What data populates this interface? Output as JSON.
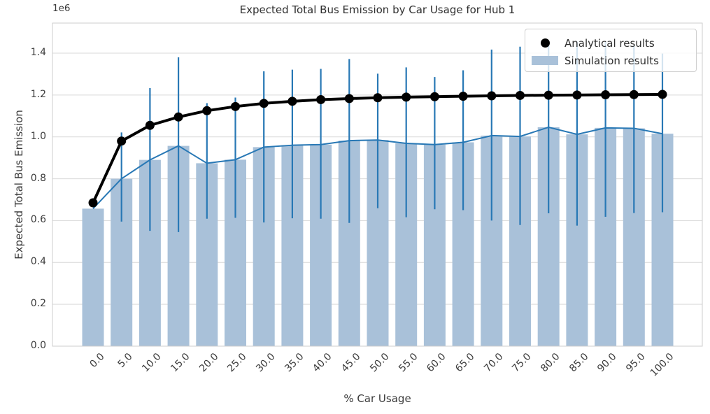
{
  "figure": {
    "title": "Expected Total Bus Emission by Car Usage for Hub 1",
    "y_offset_label": "1e6",
    "xlabel": "% Car Usage",
    "ylabel": "Expected Total Bus Emission"
  },
  "legend": {
    "items": [
      {
        "label": "Analytical results",
        "marker": "black-dot"
      },
      {
        "label": "Simulation results",
        "marker": "blue-bar-patch"
      }
    ]
  },
  "colors": {
    "bar": "#a9c1d9",
    "blue_line": "#2878b5",
    "analytical_line": "#000000",
    "grid": "#d9d9d9",
    "spine": "#cccccc"
  },
  "chart_data": {
    "type": "bar",
    "title": "Expected Total Bus Emission by Car Usage for Hub 1",
    "xlabel": "% Car Usage",
    "ylabel": "Expected Total Bus Emission",
    "unit_multiplier": "1e6",
    "categories": [
      "0.0",
      "5.0",
      "10.0",
      "15.0",
      "20.0",
      "25.0",
      "30.0",
      "35.0",
      "40.0",
      "45.0",
      "50.0",
      "55.0",
      "60.0",
      "65.0",
      "70.0",
      "75.0",
      "80.0",
      "85.0",
      "90.0",
      "95.0",
      "100.0"
    ],
    "ytick_labels": [
      "0.0",
      "0.2",
      "0.4",
      "0.6",
      "0.8",
      "1.0",
      "1.2",
      "1.4"
    ],
    "yticks": [
      0.0,
      0.2,
      0.4,
      0.6,
      0.8,
      1.0,
      1.2,
      1.4
    ],
    "ylim": [
      0,
      1.545
    ],
    "grid": "horizontal",
    "legend_position": "upper right",
    "series": [
      {
        "name": "Analytical results",
        "type": "line",
        "values": [
          0.685,
          0.98,
          1.055,
          1.095,
          1.125,
          1.145,
          1.16,
          1.17,
          1.178,
          1.183,
          1.187,
          1.19,
          1.192,
          1.194,
          1.196,
          1.198,
          1.199,
          1.2,
          1.201,
          1.202,
          1.203
        ]
      },
      {
        "name": "Simulation results",
        "type": "bar",
        "values": [
          0.657,
          0.8,
          0.89,
          0.957,
          0.874,
          0.891,
          0.951,
          0.96,
          0.963,
          0.982,
          0.985,
          0.969,
          0.963,
          0.974,
          1.006,
          1.002,
          1.046,
          1.012,
          1.043,
          1.041,
          1.015
        ],
        "err_low": [
          null,
          0.595,
          0.551,
          0.545,
          0.609,
          0.613,
          0.591,
          0.611,
          0.609,
          0.589,
          0.659,
          0.616,
          0.654,
          0.65,
          0.6,
          0.579,
          0.635,
          0.576,
          0.618,
          0.636,
          0.64
        ],
        "err_high": [
          null,
          1.021,
          1.233,
          1.38,
          1.161,
          1.188,
          1.313,
          1.321,
          1.325,
          1.372,
          1.302,
          1.332,
          1.286,
          1.318,
          1.417,
          1.431,
          1.448,
          1.455,
          1.455,
          1.437,
          1.398
        ]
      }
    ]
  }
}
